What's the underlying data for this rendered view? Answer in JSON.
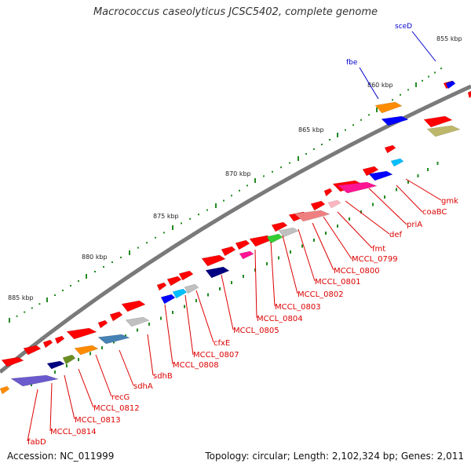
{
  "title": "Macrococcus caseolyticus JCSC5402, complete genome",
  "footer": {
    "accession": "Accession: NC_011999",
    "topology": "Topology: circular; Length: 2,102,324 bp; Genes: 2,011"
  },
  "colors": {
    "backbone": "#7a7a7a",
    "cds_forward": "#ff0000",
    "cds_reverse": "#ff0000",
    "tick_dot": "#228b22",
    "top_label": "#0000cc",
    "bottom_label": "#dd0000"
  },
  "scale_labels": [
    "855 kbp",
    "860 kbp",
    "865 kbp",
    "870 kbp",
    "875 kbp",
    "880 kbp",
    "885 kbp"
  ],
  "top_genes": [
    "sceD",
    "fbe"
  ],
  "bottom_genes": [
    "gmk",
    "coaBC",
    "priA",
    "def",
    "fmt",
    "MCCL_0799",
    "MCCL_0800",
    "MCCL_0801",
    "MCCL_0802",
    "MCCL_0803",
    "MCCL_0804",
    "MCCL_0805",
    "cfxE",
    "MCCL_0807",
    "MCCL_0808",
    "sdhB",
    "sdhA",
    "recG",
    "MCCL_0812",
    "MCCL_0813",
    "MCCL_0814",
    "fabD"
  ]
}
